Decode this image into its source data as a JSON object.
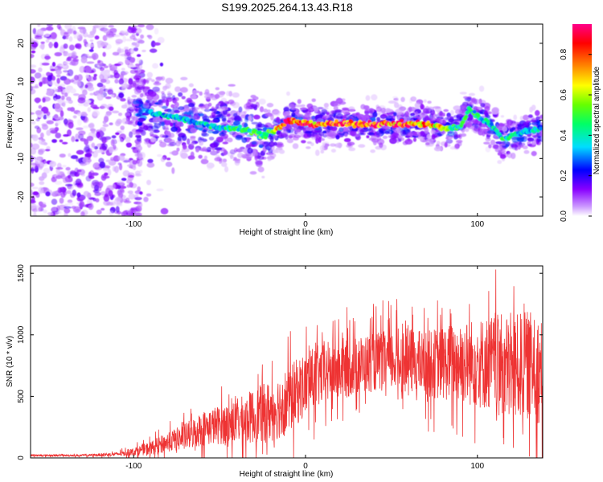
{
  "title": "S199.2025.264.13.43.R18",
  "chart_data": [
    {
      "type": "heatmap",
      "name": "spectrogram",
      "xlabel": "Height of straight line (km)",
      "ylabel": "Frequency (Hz)",
      "xlim": [
        -160,
        138
      ],
      "ylim": [
        -25,
        25
      ],
      "xticks": [
        -100,
        0,
        100
      ],
      "yticks": [
        -20,
        -10,
        0,
        10,
        20
      ],
      "xtick_labels": [
        "-100",
        "0",
        "100"
      ],
      "ytick_labels": [
        "-20",
        "-10",
        "0",
        "10",
        "20"
      ],
      "colorbar": {
        "label": "Normalized spectral amplitude",
        "range": [
          0,
          0.95
        ],
        "ticks": [
          0.0,
          0.2,
          0.4,
          0.6,
          0.8
        ],
        "tick_labels": [
          "0.0",
          "0.2",
          "0.4",
          "0.6",
          "0.8"
        ],
        "colors": [
          "#ffffff",
          "#cc99ff",
          "#8800ff",
          "#0000ff",
          "#00ddff",
          "#00ff66",
          "#66ff00",
          "#ffff00",
          "#ff8800",
          "#ff0000",
          "#ff0088"
        ]
      },
      "ridge": {
        "x": [
          -90,
          -80,
          -70,
          -60,
          -50,
          -40,
          -30,
          -25,
          -20,
          -15,
          -10,
          0,
          10,
          20,
          30,
          40,
          50,
          60,
          70,
          80,
          85,
          90,
          95,
          100,
          110,
          115,
          120,
          130,
          137
        ],
        "frequency": [
          2,
          1,
          0,
          -1,
          -2,
          -2,
          -3,
          -4,
          -3,
          -2,
          0,
          -1,
          -1,
          -1,
          -1,
          -1,
          -1,
          -1,
          -1,
          -2,
          -2,
          -2,
          3,
          1,
          -2,
          -5,
          -4,
          -3,
          -2
        ],
        "amplitude": [
          0.35,
          0.4,
          0.4,
          0.42,
          0.45,
          0.45,
          0.5,
          0.55,
          0.6,
          0.75,
          0.9,
          0.85,
          0.8,
          0.85,
          0.9,
          0.9,
          0.85,
          0.8,
          0.75,
          0.65,
          0.5,
          0.45,
          0.5,
          0.45,
          0.45,
          0.5,
          0.45,
          0.45,
          0.4
        ]
      }
    },
    {
      "type": "line",
      "name": "snr",
      "xlabel": "Height of straight line (km)",
      "ylabel": "SNR (10 * v/v)",
      "xlim": [
        -160,
        138
      ],
      "ylim": [
        0,
        1560
      ],
      "xticks": [
        -100,
        0,
        100
      ],
      "yticks": [
        0,
        500,
        1000,
        1500
      ],
      "xtick_labels": [
        "-100",
        "0",
        "100"
      ],
      "ytick_labels": [
        "0",
        "500",
        "1000",
        "1500"
      ],
      "color": "#ee3333",
      "envelope": {
        "x": [
          -160,
          -130,
          -110,
          -100,
          -90,
          -80,
          -70,
          -60,
          -50,
          -40,
          -30,
          -20,
          -10,
          0,
          10,
          20,
          30,
          40,
          50,
          60,
          70,
          80,
          90,
          100,
          110,
          120,
          130,
          138
        ],
        "mean": [
          20,
          20,
          30,
          50,
          80,
          130,
          170,
          240,
          270,
          290,
          340,
          380,
          470,
          600,
          680,
          720,
          750,
          780,
          790,
          790,
          760,
          770,
          780,
          770,
          770,
          720,
          760,
          700
        ],
        "spread": [
          10,
          10,
          20,
          40,
          70,
          100,
          140,
          180,
          200,
          230,
          280,
          320,
          350,
          330,
          320,
          320,
          300,
          300,
          320,
          330,
          340,
          380,
          420,
          460,
          500,
          550,
          550,
          550
        ]
      }
    }
  ]
}
